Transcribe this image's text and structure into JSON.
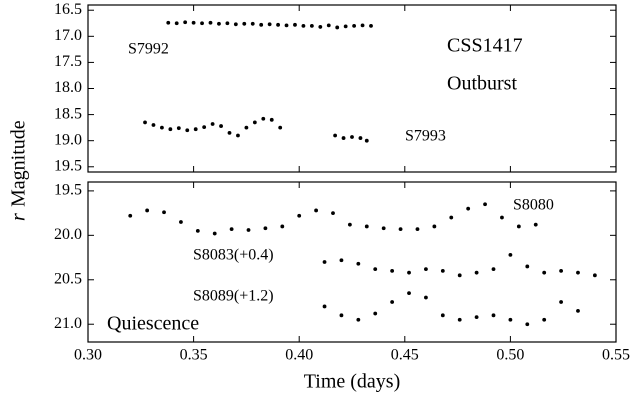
{
  "chart_data": [
    {
      "type": "scatter",
      "xlim": [
        0.3,
        0.55
      ],
      "xticks": [
        {
          "value": 0.3,
          "label": "0.30"
        },
        {
          "value": 0.35,
          "label": "0.35"
        },
        {
          "value": 0.4,
          "label": "0.40"
        },
        {
          "value": 0.45,
          "label": "0.45"
        },
        {
          "value": 0.5,
          "label": "0.50"
        },
        {
          "value": 0.55,
          "label": "0.55"
        }
      ],
      "ylim": [
        19.6,
        16.4
      ],
      "yticks": [
        16.5,
        {
          "value": 17,
          "label": "17.0"
        },
        17.5,
        {
          "value": 18,
          "label": "18.0"
        },
        18.5,
        {
          "value": 19,
          "label": "19.0"
        },
        19.5
      ],
      "annotations": [
        "CSS1417",
        "Outburst"
      ],
      "series": [
        {
          "name": "S7992",
          "color": "#000000",
          "x": [
            0.338,
            0.342,
            0.346,
            0.35,
            0.354,
            0.358,
            0.362,
            0.366,
            0.37,
            0.374,
            0.378,
            0.382,
            0.386,
            0.39,
            0.394,
            0.398,
            0.402,
            0.406,
            0.41,
            0.414,
            0.418,
            0.422,
            0.426,
            0.43,
            0.434
          ],
          "values": [
            16.74,
            16.75,
            16.73,
            16.74,
            16.75,
            16.74,
            16.76,
            16.75,
            16.77,
            16.76,
            16.76,
            16.78,
            16.77,
            16.78,
            16.79,
            16.78,
            16.8,
            16.8,
            16.82,
            16.79,
            16.83,
            16.81,
            16.8,
            16.79,
            16.8
          ]
        },
        {
          "name": "S7993",
          "color": "#000000",
          "x": [
            0.327,
            0.331,
            0.335,
            0.339,
            0.343,
            0.347,
            0.351,
            0.355,
            0.359,
            0.363,
            0.367,
            0.371,
            0.375,
            0.379,
            0.383,
            0.387,
            0.391,
            0.417,
            0.421,
            0.425,
            0.429,
            0.432
          ],
          "values": [
            18.65,
            18.7,
            18.75,
            18.78,
            18.76,
            18.8,
            18.78,
            18.74,
            18.68,
            18.72,
            18.85,
            18.9,
            18.75,
            18.65,
            18.58,
            18.6,
            18.75,
            18.9,
            18.95,
            18.93,
            18.95,
            19.0
          ]
        }
      ]
    },
    {
      "type": "scatter",
      "xlim": [
        0.3,
        0.55
      ],
      "xticks": [
        {
          "value": 0.3,
          "label": "0.30"
        },
        {
          "value": 0.35,
          "label": "0.35"
        },
        {
          "value": 0.4,
          "label": "0.40"
        },
        {
          "value": 0.45,
          "label": "0.45"
        },
        {
          "value": 0.5,
          "label": "0.50"
        },
        {
          "value": 0.55,
          "label": "0.55"
        }
      ],
      "ylim": [
        21.2,
        19.4
      ],
      "yticks": [
        19.5,
        {
          "value": 20,
          "label": "20.0"
        },
        20.5,
        {
          "value": 21,
          "label": "21.0"
        }
      ],
      "x_label": "Time (days)",
      "y_label_var": "r",
      "y_label": "Magnitude",
      "annotations": [
        "Quiescence"
      ],
      "series": [
        {
          "name": "S8080",
          "color": "#000000",
          "x": [
            0.32,
            0.328,
            0.336,
            0.344,
            0.352,
            0.36,
            0.368,
            0.376,
            0.384,
            0.392,
            0.4,
            0.408,
            0.416,
            0.424,
            0.432,
            0.44,
            0.448,
            0.456,
            0.464,
            0.472,
            0.48,
            0.488,
            0.496,
            0.504,
            0.512
          ],
          "values": [
            19.78,
            19.72,
            19.74,
            19.85,
            19.95,
            19.98,
            19.93,
            19.94,
            19.92,
            19.9,
            19.78,
            19.72,
            19.75,
            19.88,
            19.9,
            19.92,
            19.93,
            19.93,
            19.9,
            19.8,
            19.7,
            19.65,
            19.8,
            19.9,
            19.88
          ]
        },
        {
          "name": "S8083(+0.4)",
          "color": "#000000",
          "x": [
            0.412,
            0.42,
            0.428,
            0.436,
            0.444,
            0.452,
            0.46,
            0.468,
            0.476,
            0.484,
            0.492,
            0.5,
            0.508,
            0.516,
            0.524,
            0.532,
            0.54
          ],
          "values": [
            20.3,
            20.28,
            20.32,
            20.38,
            20.4,
            20.42,
            20.38,
            20.4,
            20.45,
            20.42,
            20.38,
            20.22,
            20.35,
            20.42,
            20.4,
            20.42,
            20.45
          ]
        },
        {
          "name": "S8089(+1.2)",
          "color": "#000000",
          "x": [
            0.412,
            0.42,
            0.428,
            0.436,
            0.444,
            0.452,
            0.46,
            0.468,
            0.476,
            0.484,
            0.492,
            0.5,
            0.508,
            0.516,
            0.524,
            0.532
          ],
          "values": [
            20.8,
            20.9,
            20.95,
            20.88,
            20.75,
            20.65,
            20.7,
            20.9,
            20.95,
            20.92,
            20.9,
            20.95,
            21.0,
            20.95,
            20.75,
            20.85
          ]
        }
      ]
    }
  ]
}
